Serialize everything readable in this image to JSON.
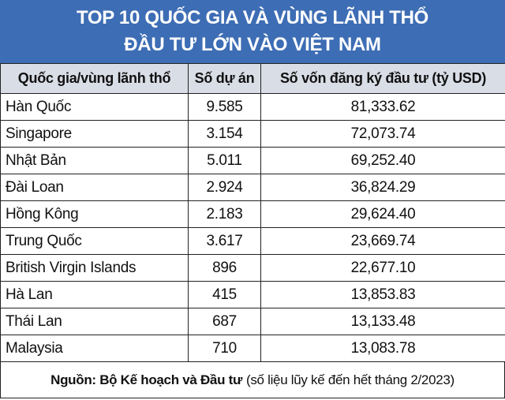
{
  "header": {
    "title_lines": [
      "TOP 10 QUỐC GIA VÀ VÙNG LÃNH THỔ",
      "ĐẦU TƯ LỚN VÀO VIỆT NAM"
    ]
  },
  "table": {
    "columns": [
      "Quốc gia/vùng lãnh thổ",
      "Số dự án",
      "Số vốn đăng ký đầu tư (tỷ USD)"
    ],
    "rows": [
      [
        "Hàn Quốc",
        "9.585",
        "81,333.62"
      ],
      [
        "Singapore",
        "3.154",
        "72,073.74"
      ],
      [
        "Nhật Bản",
        "5.011",
        "69,252.40"
      ],
      [
        "Đài Loan",
        "2.924",
        "36,824.29"
      ],
      [
        "Hồng Kông",
        "2.183",
        "29,624.40"
      ],
      [
        "Trung Quốc",
        "3.617",
        "23,669.74"
      ],
      [
        "British Virgin Islands",
        "896",
        "22,677.10"
      ],
      [
        "Hà Lan",
        "415",
        "13,853.83"
      ],
      [
        "Thái Lan",
        "687",
        "13,133.48"
      ],
      [
        "Malaysia",
        "710",
        "13,083.78"
      ]
    ]
  },
  "footer": {
    "source": "Nguồn: Bộ Kế hoạch và Đầu tư",
    "note": "(số liệu lũy kế đến hết tháng 2/2023)"
  }
}
